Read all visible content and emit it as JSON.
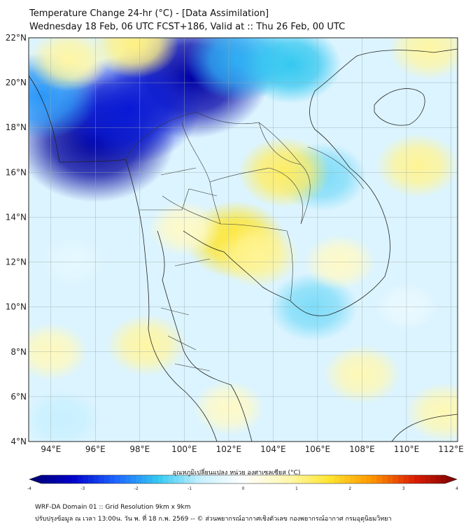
{
  "title": {
    "line1": "Temperature Change 24-hr (°C) - [Data Assimilation]",
    "line2": "Wednesday 18 Feb, 06 UTC FCST+186, Valid at :: Thu 26 Feb, 00 UTC"
  },
  "map": {
    "lat_labels": [
      "22°N",
      "20°N",
      "18°N",
      "16°N",
      "14°N",
      "12°N",
      "10°N",
      "8°N",
      "6°N",
      "4°N"
    ],
    "lon_labels": [
      "94°E",
      "96°E",
      "98°E",
      "100°E",
      "102°E",
      "104°E",
      "106°E",
      "108°E",
      "110°E",
      "112°E"
    ],
    "lat_range": [
      4,
      22
    ],
    "lon_range": [
      93,
      112.3
    ],
    "anomalies": [
      {
        "lon": 100.3,
        "lat": 20.2,
        "value": -3.5
      },
      {
        "lon": 96.0,
        "lat": 17.4,
        "value": -3.6
      },
      {
        "lon": 97.5,
        "lat": 18.8,
        "value": -3.0
      },
      {
        "lon": 102.5,
        "lat": 21.0,
        "value": -1.8
      },
      {
        "lon": 104.8,
        "lat": 20.8,
        "value": -1.6
      },
      {
        "lon": 93.6,
        "lat": 19.4,
        "value": -2.0
      },
      {
        "lon": 106.2,
        "lat": 15.8,
        "value": -1.2
      },
      {
        "lon": 105.8,
        "lat": 10.0,
        "value": -1.2
      },
      {
        "lon": 97.8,
        "lat": 21.7,
        "value": 1.1
      },
      {
        "lon": 94.8,
        "lat": 21.0,
        "value": 0.9
      },
      {
        "lon": 102.3,
        "lat": 13.0,
        "value": 1.6
      },
      {
        "lon": 104.5,
        "lat": 16.0,
        "value": 1.3
      },
      {
        "lon": 103.3,
        "lat": 12.3,
        "value": 1.0
      },
      {
        "lon": 98.3,
        "lat": 8.3,
        "value": 0.9
      },
      {
        "lon": 110.5,
        "lat": 16.3,
        "value": 1.0
      },
      {
        "lon": 111.0,
        "lat": 21.5,
        "value": 0.9
      },
      {
        "lon": 108.0,
        "lat": 7.0,
        "value": 0.8
      },
      {
        "lon": 102.0,
        "lat": 5.5,
        "value": 0.6
      },
      {
        "lon": 111.7,
        "lat": 5.3,
        "value": 0.8
      },
      {
        "lon": 100.0,
        "lat": 13.5,
        "value": 0.6
      },
      {
        "lon": 107.0,
        "lat": 12.0,
        "value": 0.6
      },
      {
        "lon": 94.0,
        "lat": 8.0,
        "value": 0.7
      },
      {
        "lon": 95.0,
        "lat": 12.0,
        "value": -0.4
      },
      {
        "lon": 110.0,
        "lat": 10.0,
        "value": -0.3
      },
      {
        "lon": 94.5,
        "lat": 5.0,
        "value": -0.8
      }
    ]
  },
  "colorbar": {
    "title": "อุณหภูมิเปลี่ยนแปลง หน่วย องศาเซลเซียส (°C)",
    "min": -4,
    "max": 4,
    "ticks": [
      "-4",
      "-3",
      "-2",
      "-1",
      "0",
      "1",
      "2",
      "3",
      "4"
    ],
    "colors": [
      "#00006e",
      "#0000c8",
      "#1e64ff",
      "#34c8f0",
      "#c8f0ff",
      "#ffffff",
      "#fff8b4",
      "#ffe632",
      "#ff9600",
      "#dc1e00",
      "#780000"
    ]
  },
  "footer": {
    "line1": "WRF-DA Domain 01 :: Grid Resolution 9km x 9km",
    "line2": "ปรับปรุงข้อมูล ณ เวลา 13:00น. วัน พ. ที่ 18 ก.พ. 2569 -- © ส่วนพยากรณ์อากาศเชิงตัวเลข กองพยากรณ์อากาศ กรมอุตุนิยมวิทยา"
  }
}
